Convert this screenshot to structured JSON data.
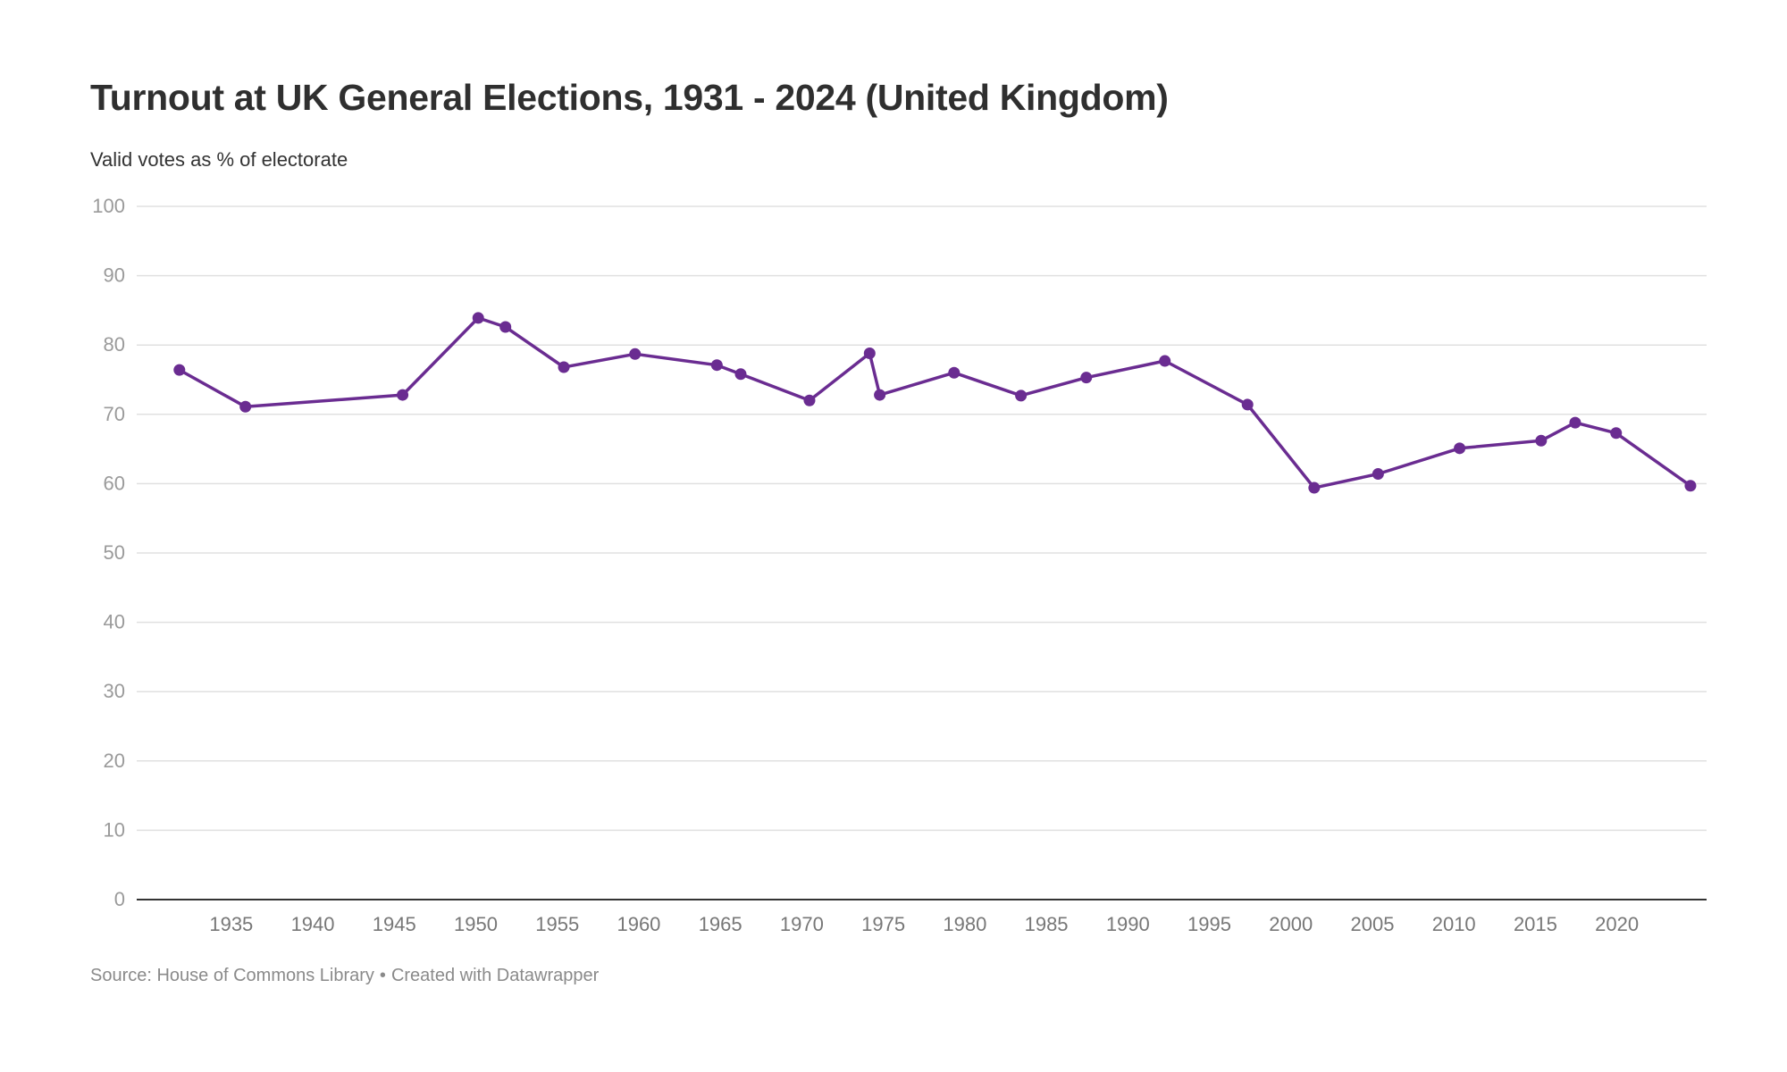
{
  "chart_data": {
    "type": "line",
    "title": "Turnout at UK General Elections, 1931 - 2024 (United Kingdom)",
    "subtitle": "Valid votes as % of electorate",
    "xlabel": "",
    "ylabel": "",
    "xlim": [
      1929.2,
      2025.5
    ],
    "ylim": [
      0,
      100
    ],
    "yticks": [
      0,
      10,
      20,
      30,
      40,
      50,
      60,
      70,
      80,
      90,
      100
    ],
    "xticks": [
      1935,
      1940,
      1945,
      1950,
      1955,
      1960,
      1965,
      1970,
      1975,
      1980,
      1985,
      1990,
      1995,
      2000,
      2005,
      2010,
      2015,
      2020
    ],
    "grid": true,
    "series": [
      {
        "color": "#6a2c91",
        "x": [
          1931.82,
          1935.87,
          1945.51,
          1950.15,
          1951.82,
          1955.4,
          1959.77,
          1964.79,
          1966.25,
          1970.47,
          1974.16,
          1974.78,
          1979.34,
          1983.44,
          1987.45,
          1992.27,
          1997.34,
          2001.43,
          2005.35,
          2010.35,
          2015.35,
          2017.44,
          2019.95,
          2024.51
        ],
        "y": [
          76.4,
          71.1,
          72.8,
          83.9,
          82.6,
          76.8,
          78.7,
          77.1,
          75.8,
          72.0,
          78.8,
          72.8,
          76.0,
          72.7,
          75.3,
          77.7,
          71.4,
          59.4,
          61.4,
          65.1,
          66.2,
          68.8,
          67.3,
          59.7
        ]
      }
    ]
  },
  "footer": {
    "source": "Source: House of Commons Library",
    "separator": "•",
    "credit": "Created with Datawrapper"
  }
}
